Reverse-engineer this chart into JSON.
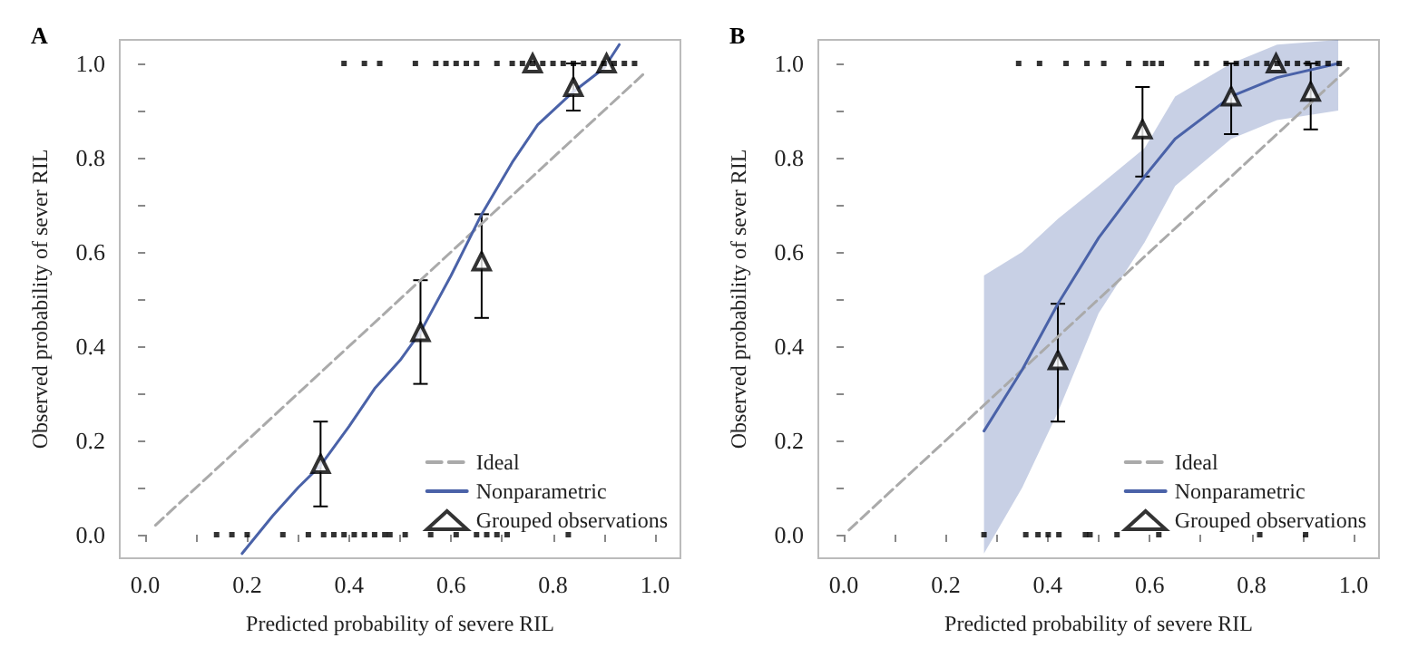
{
  "chart_data": [
    {
      "type": "line",
      "title": "A",
      "xlabel": "Predicted probability of severe RIL",
      "ylabel": "Observed probability of sever RIL",
      "xlim": [
        -0.05,
        1.05
      ],
      "ylim": [
        -0.05,
        1.05
      ],
      "xticks": [
        {
          "value": 0,
          "label": "0.0"
        },
        {
          "value": 0.1,
          "label": null
        },
        0.2,
        {
          "value": 0.3,
          "label": null
        },
        0.4,
        {
          "value": 0.5,
          "label": null
        },
        0.6,
        {
          "value": 0.7,
          "label": null
        },
        0.8,
        {
          "value": 0.9,
          "label": null
        },
        {
          "value": 1,
          "label": "1.0"
        }
      ],
      "yticks": [
        {
          "value": 0,
          "label": "0.0"
        },
        {
          "value": 0.1,
          "label": null
        },
        0.2,
        {
          "value": 0.3,
          "label": null
        },
        0.4,
        {
          "value": 0.5,
          "label": null
        },
        0.6,
        {
          "value": 0.7,
          "label": null
        },
        0.8,
        {
          "value": 0.9,
          "label": null
        },
        {
          "value": 1,
          "label": "1.0"
        }
      ],
      "legend": "bottom right",
      "series": [
        {
          "name": "Ideal",
          "color": "#aaaaaa",
          "line_style": "dashed",
          "marker": "none",
          "x": [
            0.02,
            0.98
          ],
          "values": [
            0.02,
            0.98
          ]
        },
        {
          "name": "Nonparametric",
          "color": "#4a62a8",
          "line_style": "solid",
          "marker": "none",
          "x": [
            0.19,
            0.25,
            0.3,
            0.344,
            0.4,
            0.45,
            0.5,
            0.54,
            0.6,
            0.66,
            0.72,
            0.77,
            0.84,
            0.9,
            0.93
          ],
          "values": [
            -0.04,
            0.04,
            0.1,
            0.147,
            0.23,
            0.31,
            0.37,
            0.43,
            0.55,
            0.68,
            0.79,
            0.87,
            0.94,
            0.99,
            1.04
          ]
        },
        {
          "name": "Grouped observations",
          "type": "scatter",
          "color": "#000000",
          "marker": "triangle",
          "x": [
            0.344,
            0.54,
            0.66,
            0.84,
            0.76,
            0.905
          ],
          "values": [
            0.15,
            0.43,
            0.58,
            0.95,
            1.0,
            1.0
          ],
          "errors": [
            [
              0.06,
              0.24
            ],
            [
              0.32,
              0.54
            ],
            [
              0.46,
              0.68
            ],
            [
              0.9,
              1.0
            ],
            null,
            null
          ]
        },
        {
          "type": "scatter",
          "color": "#000000",
          "marker": "square",
          "x": [
            0.39,
            0.43,
            0.46,
            0.53,
            0.57,
            0.59,
            0.61,
            0.63,
            0.65,
            0.69,
            0.72,
            0.74,
            0.76,
            0.78,
            0.8,
            0.82,
            0.84,
            0.86,
            0.88,
            0.9,
            0.92,
            0.94,
            0.96
          ],
          "values": [
            1,
            1,
            1,
            1,
            1,
            1,
            1,
            1,
            1,
            1,
            1,
            1,
            1,
            1,
            1,
            1,
            1,
            1,
            1,
            1,
            1,
            1,
            1
          ]
        },
        {
          "type": "scatter",
          "color": "#000000",
          "marker": "square",
          "x": [
            0.14,
            0.17,
            0.2,
            0.27,
            0.32,
            0.35,
            0.37,
            0.39,
            0.41,
            0.43,
            0.45,
            0.47,
            0.48,
            0.51,
            0.56,
            0.61,
            0.65,
            0.67,
            0.69,
            0.71,
            0.83
          ],
          "values": [
            0,
            0,
            0,
            0,
            0,
            0,
            0,
            0,
            0,
            0,
            0,
            0,
            0,
            0,
            0,
            0,
            0,
            0,
            0,
            0,
            0
          ]
        }
      ]
    },
    {
      "type": "line",
      "title": "B",
      "xlabel": "Predicted probability of severe RIL",
      "ylabel": "Observed probability of sever RIL",
      "xlim": [
        -0.05,
        1.05
      ],
      "ylim": [
        -0.05,
        1.05
      ],
      "xticks": [
        {
          "value": 0,
          "label": "0.0"
        },
        {
          "value": 0.1,
          "label": null
        },
        0.2,
        {
          "value": 0.3,
          "label": null
        },
        0.4,
        {
          "value": 0.5,
          "label": null
        },
        0.6,
        {
          "value": 0.7,
          "label": null
        },
        0.8,
        {
          "value": 0.9,
          "label": null
        },
        {
          "value": 1,
          "label": "1.0"
        }
      ],
      "yticks": [
        {
          "value": 0,
          "label": "0.0"
        },
        {
          "value": 0.1,
          "label": null
        },
        0.2,
        {
          "value": 0.3,
          "label": null
        },
        0.4,
        {
          "value": 0.5,
          "label": null
        },
        0.6,
        {
          "value": 0.7,
          "label": null
        },
        0.8,
        {
          "value": 0.9,
          "label": null
        },
        {
          "value": 1,
          "label": "1.0"
        }
      ],
      "legend": "bottom right",
      "series": [
        {
          "name": "Ideal",
          "color": "#aaaaaa",
          "line_style": "dashed",
          "marker": "none",
          "x": [
            0.01,
            0.99
          ],
          "values": [
            0.01,
            0.99
          ]
        },
        {
          "name": "Nonparametric",
          "color": "#4a62a8",
          "line_style": "solid",
          "marker": "none",
          "x": [
            0.275,
            0.35,
            0.42,
            0.5,
            0.59,
            0.65,
            0.76,
            0.85,
            0.97
          ],
          "values": [
            0.22,
            0.35,
            0.49,
            0.63,
            0.76,
            0.84,
            0.93,
            0.97,
            1.0
          ],
          "lower": [
            -0.04,
            0.1,
            0.26,
            0.47,
            0.62,
            0.74,
            0.84,
            0.88,
            0.9
          ],
          "upper": [
            0.55,
            0.6,
            0.67,
            0.74,
            0.82,
            0.93,
            1.0,
            1.04,
            1.05
          ]
        },
        {
          "name": "Grouped observations",
          "type": "scatter",
          "color": "#000000",
          "marker": "triangle",
          "x": [
            0.42,
            0.586,
            0.76,
            0.916,
            0.848
          ],
          "values": [
            0.37,
            0.86,
            0.93,
            0.94,
            1.0
          ],
          "errors": [
            [
              0.24,
              0.49
            ],
            [
              0.76,
              0.95
            ],
            [
              0.85,
              1.0
            ],
            [
              0.86,
              1.0
            ],
            null
          ]
        },
        {
          "type": "scatter",
          "color": "#000000",
          "marker": "square",
          "x": [
            0.343,
            0.384,
            0.436,
            0.477,
            0.51,
            0.559,
            0.592,
            0.606,
            0.623,
            0.693,
            0.711,
            0.75,
            0.77,
            0.79,
            0.81,
            0.83,
            0.85,
            0.87,
            0.89,
            0.91,
            0.93,
            0.95,
            0.972
          ],
          "values": [
            1,
            1,
            1,
            1,
            1,
            1,
            1,
            1,
            1,
            1,
            1,
            1,
            1,
            1,
            1,
            1,
            1,
            1,
            1,
            1,
            1,
            1,
            1
          ]
        },
        {
          "type": "scatter",
          "color": "#000000",
          "marker": "square",
          "x": [
            0.275,
            0.357,
            0.381,
            0.401,
            0.422,
            0.474,
            0.483,
            0.536,
            0.618,
            0.816,
            0.906
          ],
          "values": [
            0,
            0,
            0,
            0,
            0,
            0,
            0,
            0,
            0,
            0,
            0
          ]
        }
      ]
    }
  ]
}
